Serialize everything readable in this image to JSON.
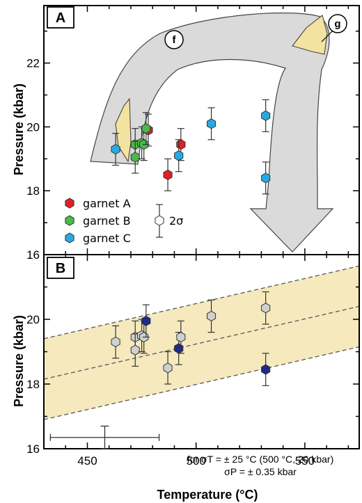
{
  "chart_data": [
    {
      "panel": "A",
      "type": "scatter",
      "ylabel": "Pressure (kbar)",
      "xlim": [
        430,
        575
      ],
      "ylim": [
        16,
        23.8
      ],
      "yticks": [
        "16",
        "18",
        "20",
        "22"
      ],
      "series": [
        {
          "name": "garnet A",
          "color": "#e31e24",
          "points": [
            {
              "x": 478,
              "y": 19.9
            },
            {
              "x": 487,
              "y": 18.5
            },
            {
              "x": 493,
              "y": 19.45
            }
          ],
          "errors": [
            0.5,
            0.5,
            0.5
          ]
        },
        {
          "name": "garnet B",
          "color": "#4cb848",
          "points": [
            {
              "x": 472,
              "y": 19.45
            },
            {
              "x": 472,
              "y": 19.05
            },
            {
              "x": 475,
              "y": 19.5
            },
            {
              "x": 476,
              "y": 19.45
            },
            {
              "x": 477,
              "y": 19.95
            }
          ],
          "errors": [
            0.5,
            0.5,
            0.5,
            0.5,
            0.5
          ]
        },
        {
          "name": "garnet C",
          "color": "#27aae1",
          "points": [
            {
              "x": 463,
              "y": 19.3
            },
            {
              "x": 492,
              "y": 19.1
            },
            {
              "x": 507,
              "y": 20.1
            },
            {
              "x": 532,
              "y": 20.35
            },
            {
              "x": 532,
              "y": 18.4
            }
          ],
          "errors": [
            0.5,
            0.5,
            0.5,
            0.5,
            0.5
          ]
        }
      ],
      "legend_error_label": "2σ",
      "annotations": [
        "f",
        "g"
      ]
    },
    {
      "panel": "B",
      "type": "scatter",
      "xlabel": "Temperature (°C)",
      "ylabel": "Pressure (kbar)",
      "xlim": [
        430,
        575
      ],
      "ylim": [
        16,
        22.0
      ],
      "xticks": [
        "450",
        "500",
        "550"
      ],
      "yticks": [
        "16",
        "18",
        "20"
      ],
      "points": [
        {
          "x": 463,
          "y": 19.3,
          "color": "#d0d0d0"
        },
        {
          "x": 472,
          "y": 19.45,
          "color": "#d0d0d0"
        },
        {
          "x": 472,
          "y": 19.05,
          "color": "#d0d0d0"
        },
        {
          "x": 475,
          "y": 19.5,
          "color": "#d0d0d0"
        },
        {
          "x": 476,
          "y": 19.45,
          "color": "#d0d0d0"
        },
        {
          "x": 477,
          "y": 19.95,
          "color": "#1e2a8c"
        },
        {
          "x": 487,
          "y": 18.5,
          "color": "#d0d0d0"
        },
        {
          "x": 492,
          "y": 19.1,
          "color": "#1e2a8c"
        },
        {
          "x": 493,
          "y": 19.45,
          "color": "#d0d0d0"
        },
        {
          "x": 507,
          "y": 20.1,
          "color": "#d0d0d0"
        },
        {
          "x": 532,
          "y": 20.35,
          "color": "#d0d0d0"
        },
        {
          "x": 532,
          "y": 18.45,
          "color": "#1e2a8c"
        }
      ],
      "error_p": 0.5,
      "regression": {
        "x1": 430,
        "y1": 18.15,
        "x2": 575,
        "y2": 20.4,
        "band_offset": 1.25
      },
      "note_line1": "for σT = ± 25 °C (500 °C, 20 kbar)",
      "note_line2": "σP = ± 0.35 kbar",
      "note_error_bar": {
        "x": 458,
        "y": 16.35,
        "dx": 25,
        "dy": 0.35
      }
    }
  ]
}
